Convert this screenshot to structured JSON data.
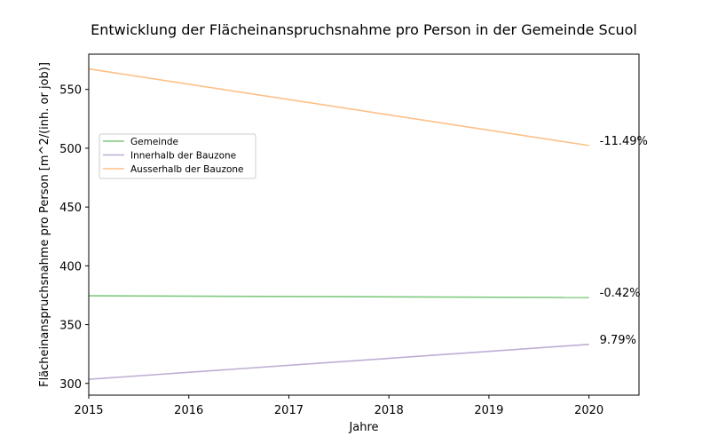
{
  "chart_data": {
    "type": "line",
    "title": "Entwicklung der Flächeinanspruchsnahme pro Person in der Gemeinde Scuol",
    "xlabel": "Jahre",
    "ylabel": "Flächeinanspruchsnahme pro Person [m^2/(inh. or job)]",
    "xlim": [
      2015,
      2020.5
    ],
    "ylim": [
      290,
      580
    ],
    "x_ticks": [
      2015,
      2016,
      2017,
      2018,
      2019,
      2020
    ],
    "y_ticks": [
      300,
      350,
      400,
      450,
      500,
      550
    ],
    "grid": false,
    "legend_position": "center-left",
    "series": [
      {
        "name": "Gemeinde",
        "color": "#7fc97f",
        "x": [
          2015,
          2020
        ],
        "values": [
          374.5,
          373.0
        ],
        "annotation": "-0.42%"
      },
      {
        "name": "Innerhalb der Bauzone",
        "color": "#beaed4",
        "x": [
          2015,
          2020
        ],
        "values": [
          303.5,
          333.2
        ],
        "annotation": "9.79%"
      },
      {
        "name": "Ausserhalb der Bauzone",
        "color": "#fdc086",
        "x": [
          2015,
          2020
        ],
        "values": [
          567.5,
          502.3
        ],
        "annotation": "-11.49%"
      }
    ]
  }
}
